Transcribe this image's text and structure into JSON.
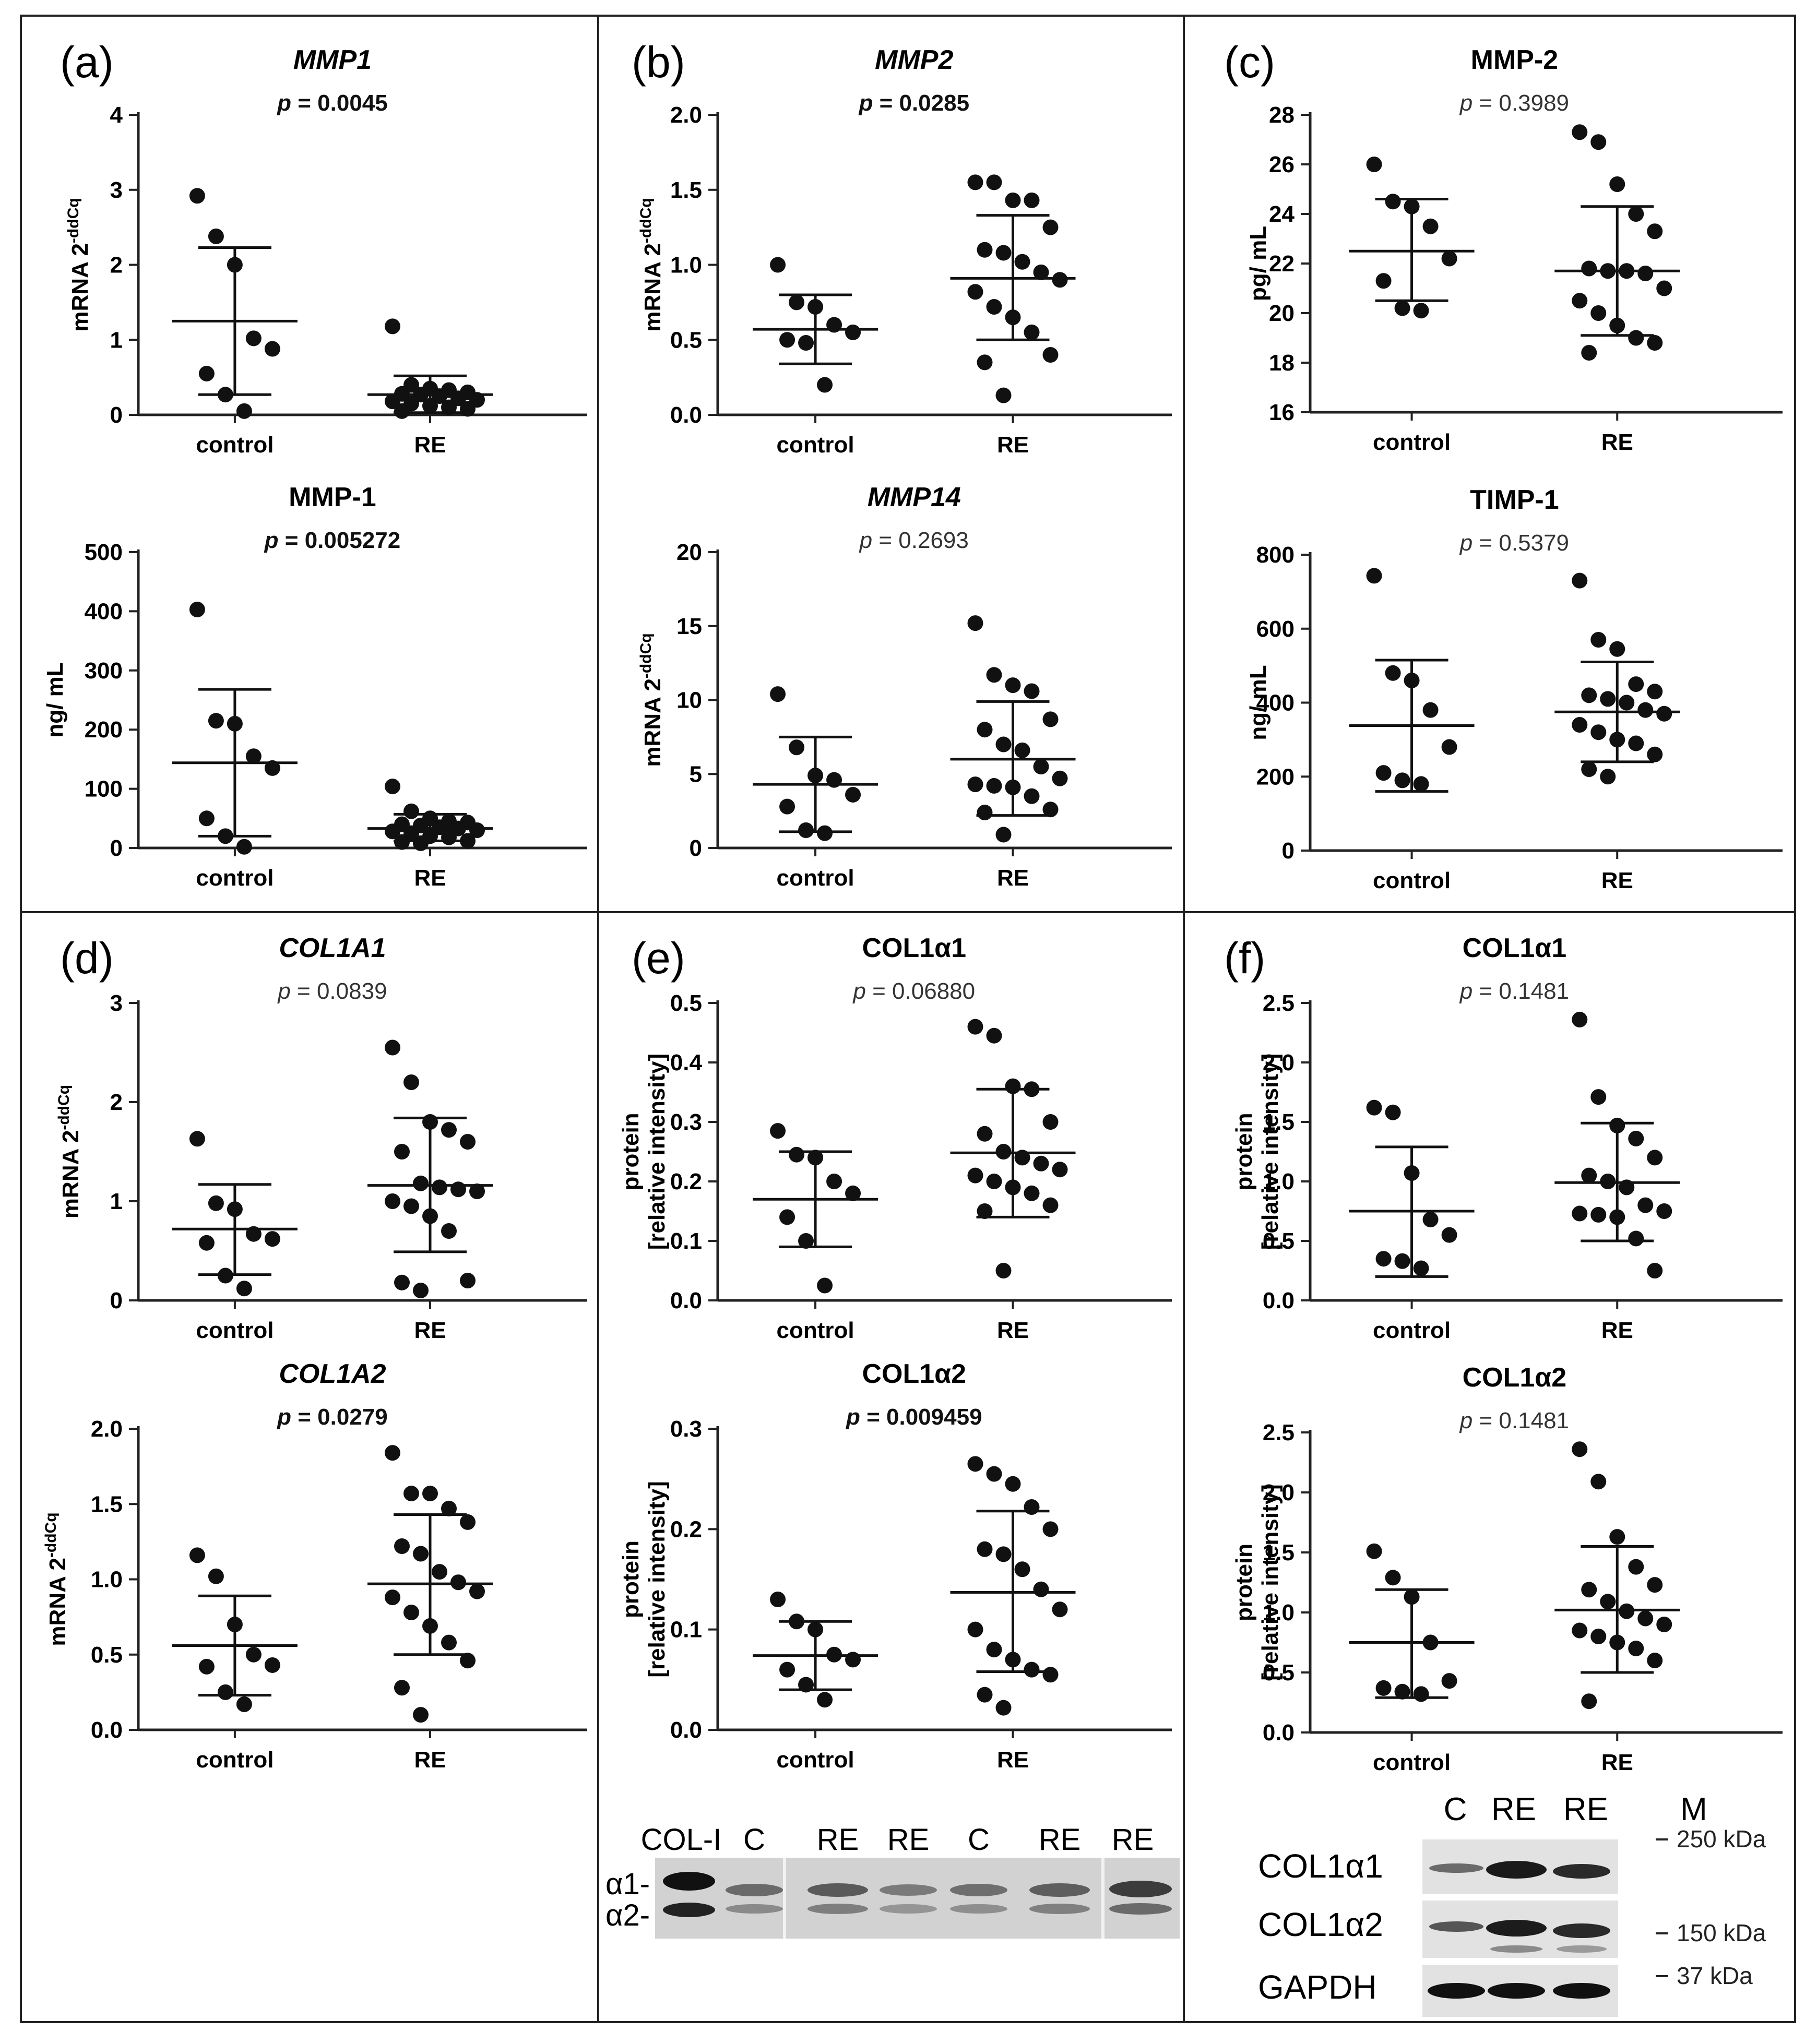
{
  "figure": {
    "panels": [
      {
        "letter": "(a)"
      },
      {
        "letter": "(b)"
      },
      {
        "letter": "(c)"
      },
      {
        "letter": "(d)"
      },
      {
        "letter": "(e)"
      },
      {
        "letter": "(f)"
      }
    ]
  },
  "chart_data": [
    {
      "panel": "a",
      "type": "scatter",
      "title": "MMP1",
      "title_italic": true,
      "pvalue": "p = 0.0045",
      "p_bold": true,
      "ylabel": "mRNA 2^-ddCq",
      "ylim": [
        0,
        4
      ],
      "yticks": [
        "0",
        "1",
        "2",
        "3",
        "4"
      ],
      "categories": [
        "control",
        "RE"
      ],
      "groups": [
        {
          "name": "control",
          "mean": 1.25,
          "sd_low": 0.27,
          "sd_high": 2.23,
          "points": [
            2.92,
            2.38,
            2.0,
            1.02,
            0.88,
            0.55,
            0.27,
            0.05
          ]
        },
        {
          "name": "RE",
          "mean": 0.27,
          "sd_low": 0.03,
          "sd_high": 0.52,
          "points": [
            1.18,
            0.4,
            0.35,
            0.33,
            0.3,
            0.28,
            0.27,
            0.25,
            0.22,
            0.2,
            0.18,
            0.15,
            0.12,
            0.1,
            0.08,
            0.05
          ]
        }
      ]
    },
    {
      "panel": "a",
      "type": "scatter",
      "title": "MMP-1",
      "title_italic": false,
      "pvalue": "p = 0.005272",
      "p_bold": true,
      "ylabel": "ng/ mL",
      "ylim": [
        0,
        500
      ],
      "yticks": [
        "0",
        "100",
        "200",
        "300",
        "400",
        "500"
      ],
      "categories": [
        "control",
        "RE"
      ],
      "groups": [
        {
          "name": "control",
          "mean": 144,
          "sd_low": 20,
          "sd_high": 268,
          "points": [
            403,
            215,
            210,
            155,
            135,
            50,
            20,
            2
          ]
        },
        {
          "name": "RE",
          "mean": 33,
          "sd_low": 12,
          "sd_high": 57,
          "points": [
            104,
            62,
            50,
            45,
            43,
            40,
            38,
            35,
            33,
            30,
            28,
            25,
            20,
            18,
            12,
            10,
            8
          ]
        }
      ]
    },
    {
      "panel": "b",
      "type": "scatter",
      "title": "MMP2",
      "title_italic": true,
      "pvalue": "p = 0.0285",
      "p_bold": true,
      "ylabel": "mRNA 2^-ddCq",
      "ylim": [
        0,
        2.0
      ],
      "yticks": [
        "0.0",
        "0.5",
        "1.0",
        "1.5",
        "2.0"
      ],
      "categories": [
        "control",
        "RE"
      ],
      "groups": [
        {
          "name": "control",
          "mean": 0.57,
          "sd_low": 0.34,
          "sd_high": 0.8,
          "points": [
            1.0,
            0.75,
            0.72,
            0.6,
            0.55,
            0.5,
            0.48,
            0.2
          ]
        },
        {
          "name": "RE",
          "mean": 0.91,
          "sd_low": 0.5,
          "sd_high": 1.33,
          "points": [
            1.55,
            1.55,
            1.43,
            1.43,
            1.25,
            1.1,
            1.08,
            1.02,
            0.95,
            0.9,
            0.82,
            0.72,
            0.65,
            0.55,
            0.4,
            0.35,
            0.13
          ]
        }
      ]
    },
    {
      "panel": "b",
      "type": "scatter",
      "title": "MMP14",
      "title_italic": true,
      "pvalue": "p = 0.2693",
      "p_bold": false,
      "ylabel": "mRNA 2^-ddCq",
      "ylim": [
        0,
        20
      ],
      "yticks": [
        "0",
        "5",
        "10",
        "15",
        "20"
      ],
      "categories": [
        "control",
        "RE"
      ],
      "groups": [
        {
          "name": "control",
          "mean": 4.3,
          "sd_low": 1.1,
          "sd_high": 7.5,
          "points": [
            10.4,
            6.8,
            4.9,
            4.6,
            3.6,
            2.8,
            1.2,
            1.0
          ]
        },
        {
          "name": "RE",
          "mean": 6.0,
          "sd_low": 2.2,
          "sd_high": 9.9,
          "points": [
            15.2,
            11.7,
            11.0,
            10.6,
            8.7,
            8.0,
            7.0,
            6.6,
            5.5,
            4.7,
            4.3,
            4.2,
            4.1,
            3.5,
            2.6,
            2.4,
            0.9
          ]
        }
      ]
    },
    {
      "panel": "c",
      "type": "scatter",
      "title": "MMP-2",
      "title_italic": false,
      "pvalue": "p = 0.3989",
      "p_bold": false,
      "ylabel": "pg/ mL",
      "ylim": [
        16,
        28
      ],
      "yticks": [
        "16",
        "18",
        "20",
        "22",
        "24",
        "26",
        "28"
      ],
      "categories": [
        "control",
        "RE"
      ],
      "groups": [
        {
          "name": "control",
          "mean": 22.5,
          "sd_low": 20.5,
          "sd_high": 24.6,
          "points": [
            26.0,
            24.5,
            24.3,
            23.5,
            22.2,
            21.3,
            20.2,
            20.1
          ]
        },
        {
          "name": "RE",
          "mean": 21.7,
          "sd_low": 19.1,
          "sd_high": 24.3,
          "points": [
            27.3,
            26.9,
            25.2,
            24.0,
            23.3,
            21.8,
            21.7,
            21.7,
            21.6,
            21.0,
            20.5,
            20.0,
            19.5,
            19.0,
            18.8,
            18.4
          ]
        }
      ]
    },
    {
      "panel": "c",
      "type": "scatter",
      "title": "TIMP-1",
      "title_italic": false,
      "pvalue": "p = 0.5379",
      "p_bold": false,
      "ylabel": "ng/ mL",
      "ylim": [
        0,
        800
      ],
      "yticks": [
        "0",
        "200",
        "400",
        "600",
        "800"
      ],
      "categories": [
        "control",
        "RE"
      ],
      "groups": [
        {
          "name": "control",
          "mean": 338,
          "sd_low": 160,
          "sd_high": 515,
          "points": [
            743,
            480,
            460,
            380,
            280,
            210,
            190,
            180
          ]
        },
        {
          "name": "RE",
          "mean": 375,
          "sd_low": 240,
          "sd_high": 510,
          "points": [
            730,
            570,
            545,
            450,
            430,
            420,
            410,
            400,
            380,
            370,
            340,
            320,
            300,
            290,
            260,
            220,
            200
          ]
        }
      ]
    },
    {
      "panel": "d",
      "type": "scatter",
      "title": "COL1A1",
      "title_italic": true,
      "pvalue": "p = 0.0839",
      "p_bold": false,
      "ylabel": "mRNA 2^-ddCq",
      "ylim": [
        0,
        3
      ],
      "yticks": [
        "0",
        "1",
        "2",
        "3"
      ],
      "categories": [
        "control",
        "RE"
      ],
      "groups": [
        {
          "name": "control",
          "mean": 0.72,
          "sd_low": 0.26,
          "sd_high": 1.17,
          "points": [
            1.63,
            0.98,
            0.92,
            0.67,
            0.62,
            0.58,
            0.25,
            0.12
          ]
        },
        {
          "name": "RE",
          "mean": 1.16,
          "sd_low": 0.49,
          "sd_high": 1.84,
          "points": [
            2.55,
            2.2,
            1.8,
            1.72,
            1.6,
            1.5,
            1.18,
            1.14,
            1.12,
            1.1,
            1.0,
            0.95,
            0.85,
            0.7,
            0.2,
            0.18,
            0.1
          ]
        }
      ]
    },
    {
      "panel": "d",
      "type": "scatter",
      "title": "COL1A2",
      "title_italic": true,
      "pvalue": "p = 0.0279",
      "p_bold": true,
      "ylabel": "mRNA 2^-ddCq",
      "ylim": [
        0,
        2.0
      ],
      "yticks": [
        "0.0",
        "0.5",
        "1.0",
        "1.5",
        "2.0"
      ],
      "categories": [
        "control",
        "RE"
      ],
      "groups": [
        {
          "name": "control",
          "mean": 0.56,
          "sd_low": 0.23,
          "sd_high": 0.89,
          "points": [
            1.16,
            1.02,
            0.7,
            0.5,
            0.43,
            0.42,
            0.25,
            0.17
          ]
        },
        {
          "name": "RE",
          "mean": 0.97,
          "sd_low": 0.5,
          "sd_high": 1.43,
          "points": [
            1.84,
            1.57,
            1.57,
            1.47,
            1.38,
            1.22,
            1.17,
            1.05,
            0.98,
            0.92,
            0.88,
            0.78,
            0.69,
            0.58,
            0.46,
            0.28,
            0.1
          ]
        }
      ]
    },
    {
      "panel": "e",
      "type": "scatter",
      "title": "COL1α1",
      "title_italic": false,
      "pvalue": "p = 0.06880",
      "p_bold": false,
      "ylabel": "protein [relative intensity]",
      "ylim": [
        0,
        0.5
      ],
      "yticks": [
        "0.0",
        "0.1",
        "0.2",
        "0.3",
        "0.4",
        "0.5"
      ],
      "categories": [
        "control",
        "RE"
      ],
      "groups": [
        {
          "name": "control",
          "mean": 0.17,
          "sd_low": 0.09,
          "sd_high": 0.25,
          "points": [
            0.285,
            0.245,
            0.24,
            0.2,
            0.18,
            0.14,
            0.1,
            0.025
          ]
        },
        {
          "name": "RE",
          "mean": 0.248,
          "sd_low": 0.14,
          "sd_high": 0.355,
          "points": [
            0.46,
            0.445,
            0.36,
            0.355,
            0.3,
            0.28,
            0.25,
            0.24,
            0.23,
            0.22,
            0.21,
            0.2,
            0.19,
            0.18,
            0.16,
            0.15,
            0.05
          ]
        }
      ]
    },
    {
      "panel": "e",
      "type": "scatter",
      "title": "COL1α2",
      "title_italic": false,
      "pvalue": "p = 0.009459",
      "p_bold": true,
      "ylabel": "protein [relative intensity]",
      "ylim": [
        0,
        0.3
      ],
      "yticks": [
        "0.0",
        "0.1",
        "0.2",
        "0.3"
      ],
      "categories": [
        "control",
        "RE"
      ],
      "groups": [
        {
          "name": "control",
          "mean": 0.074,
          "sd_low": 0.04,
          "sd_high": 0.108,
          "points": [
            0.13,
            0.108,
            0.1,
            0.075,
            0.07,
            0.06,
            0.045,
            0.03
          ]
        },
        {
          "name": "RE",
          "mean": 0.137,
          "sd_low": 0.058,
          "sd_high": 0.218,
          "points": [
            0.265,
            0.255,
            0.245,
            0.222,
            0.2,
            0.18,
            0.175,
            0.16,
            0.14,
            0.12,
            0.1,
            0.08,
            0.07,
            0.06,
            0.055,
            0.035,
            0.022
          ]
        }
      ]
    },
    {
      "panel": "f",
      "type": "scatter",
      "title": "COL1α1",
      "title_italic": false,
      "pvalue": "p = 0.1481",
      "p_bold": false,
      "ylabel": "protein [relative intensity]",
      "ylim": [
        0,
        2.5
      ],
      "yticks": [
        "0.0",
        "0.5",
        "1.0",
        "1.5",
        "2.0",
        "2.5"
      ],
      "categories": [
        "control",
        "RE"
      ],
      "groups": [
        {
          "name": "control",
          "mean": 0.75,
          "sd_low": 0.2,
          "sd_high": 1.29,
          "points": [
            1.62,
            1.58,
            1.07,
            0.68,
            0.55,
            0.35,
            0.33,
            0.27
          ]
        },
        {
          "name": "RE",
          "mean": 0.99,
          "sd_low": 0.5,
          "sd_high": 1.49,
          "points": [
            2.36,
            1.71,
            1.47,
            1.36,
            1.2,
            1.05,
            1.0,
            0.95,
            0.8,
            0.75,
            0.73,
            0.72,
            0.7,
            0.52,
            0.25
          ]
        }
      ]
    },
    {
      "panel": "f",
      "type": "scatter",
      "title": "COL1α2",
      "title_italic": false,
      "pvalue": "p = 0.1481",
      "p_bold": false,
      "ylabel": "protein [relative intensity]",
      "ylim": [
        0,
        2.5
      ],
      "yticks": [
        "0.0",
        "0.5",
        "1.0",
        "1.5",
        "2.0",
        "2.5"
      ],
      "categories": [
        "control",
        "RE"
      ],
      "groups": [
        {
          "name": "control",
          "mean": 0.75,
          "sd_low": 0.29,
          "sd_high": 1.19,
          "points": [
            1.51,
            1.29,
            1.13,
            0.75,
            0.43,
            0.37,
            0.34,
            0.32
          ]
        },
        {
          "name": "RE",
          "mean": 1.02,
          "sd_low": 0.5,
          "sd_high": 1.55,
          "points": [
            2.36,
            2.09,
            1.63,
            1.38,
            1.23,
            1.19,
            1.09,
            1.01,
            0.95,
            0.9,
            0.85,
            0.8,
            0.75,
            0.7,
            0.6,
            0.26
          ]
        }
      ]
    }
  ],
  "ylabel_parts": {
    "mrna_base": "mRNA 2",
    "mrna_sup": "-ddCq",
    "protein_1": "protein",
    "protein_2": "[relative intensity]"
  },
  "blot_e": {
    "lanes": [
      "COL-I",
      "C",
      "RE",
      "RE",
      "C",
      "RE",
      "RE"
    ],
    "bands": [
      "α1-",
      "α2-"
    ]
  },
  "blot_f": {
    "lanes": [
      "C",
      "RE",
      "RE",
      "M"
    ],
    "rows": [
      "COL1α1",
      "COL1α2",
      "GAPDH"
    ],
    "markers": [
      "250 kDa",
      "150 kDa",
      "37 kDa"
    ]
  }
}
